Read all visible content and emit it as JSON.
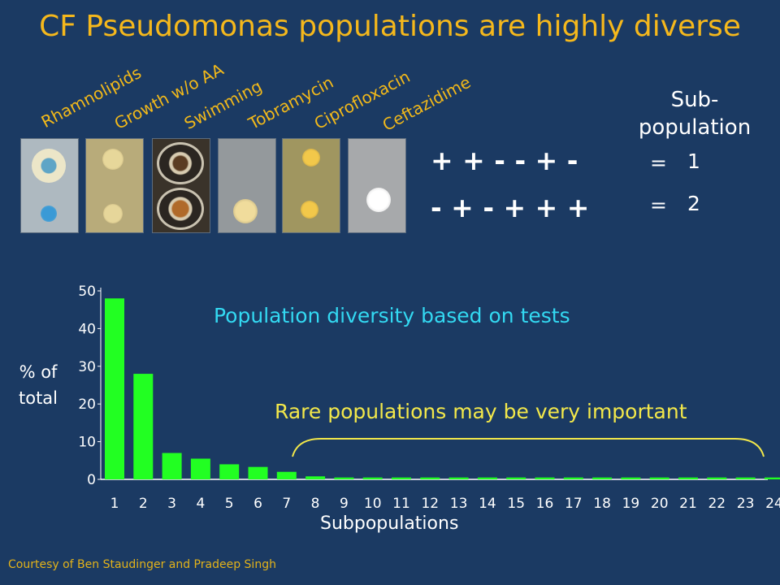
{
  "slide": {
    "title": "CF Pseudomonas populations are highly diverse",
    "tests": [
      "Rhamnolipids",
      "Growth w/o AA",
      "Swimming",
      "Tobramycin",
      "Ciprofloxacin",
      "Ceftazidime"
    ],
    "subpop_header": "Sub-\npopulation",
    "rows": [
      {
        "pattern": "+ + - - + -",
        "equals": "=",
        "id": "1"
      },
      {
        "pattern": "- + - + + +",
        "equals": "=",
        "id": "2"
      }
    ],
    "annotation_main": "Population diversity based on tests",
    "annotation_rare": "Rare populations may be very important",
    "credit": "Courtesy of Ben Staudinger and Pradeep Singh"
  },
  "colors": {
    "background": "#1b3a63",
    "title": "#f5b81c",
    "bar": "#22ff22",
    "annotation_main": "#33d9f2",
    "annotation_rare": "#f3e84a",
    "brace": "#f3e84a"
  },
  "chart_data": {
    "type": "bar",
    "categories": [
      "1",
      "2",
      "3",
      "4",
      "5",
      "6",
      "7",
      "8",
      "9",
      "10",
      "11",
      "12",
      "13",
      "14",
      "15",
      "16",
      "17",
      "18",
      "19",
      "20",
      "21",
      "22",
      "23",
      "24"
    ],
    "values": [
      48,
      28,
      7,
      5.5,
      4,
      3.3,
      2,
      0.8,
      0.5,
      0.5,
      0.5,
      0.5,
      0.5,
      0.5,
      0.5,
      0.5,
      0.5,
      0.5,
      0.5,
      0.5,
      0.5,
      0.5,
      0.5,
      0.5
    ],
    "ylabel": "% of\ntotal",
    "xlabel": "Subpopulations",
    "ylim": [
      0,
      50
    ],
    "yticks": [
      0,
      10,
      20,
      30,
      40,
      50
    ]
  }
}
